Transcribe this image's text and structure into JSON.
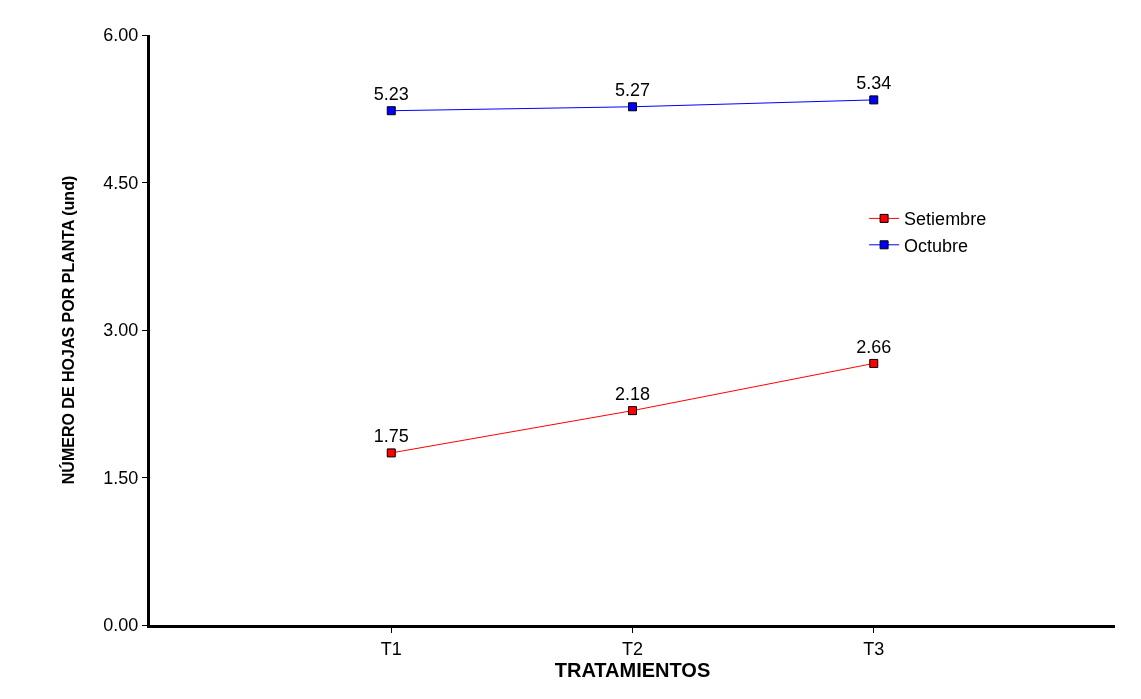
{
  "chart_data": {
    "type": "line",
    "xlabel": "TRATAMIENTOS",
    "ylabel": "NÚMERO DE HOJAS POR PLANTA (und)",
    "categories": [
      "T1",
      "T2",
      "T3"
    ],
    "series": [
      {
        "name": "Setiembre",
        "color": "#ff0000",
        "values": [
          1.75,
          2.18,
          2.66
        ]
      },
      {
        "name": "Octubre",
        "color": "#0000ff",
        "values": [
          5.23,
          5.27,
          5.34
        ]
      }
    ],
    "ylim": [
      0,
      6
    ],
    "yticks": [
      {
        "value": 0,
        "label": "0.00"
      },
      {
        "value": 1.5,
        "label": "1.50"
      },
      {
        "value": 3,
        "label": "3.00"
      },
      {
        "value": 4.5,
        "label": "4.50"
      },
      {
        "value": 6,
        "label": "6.00"
      }
    ],
    "data_labels": true,
    "legend": "right",
    "marker": "square",
    "line_style": "solid",
    "grid": false
  }
}
